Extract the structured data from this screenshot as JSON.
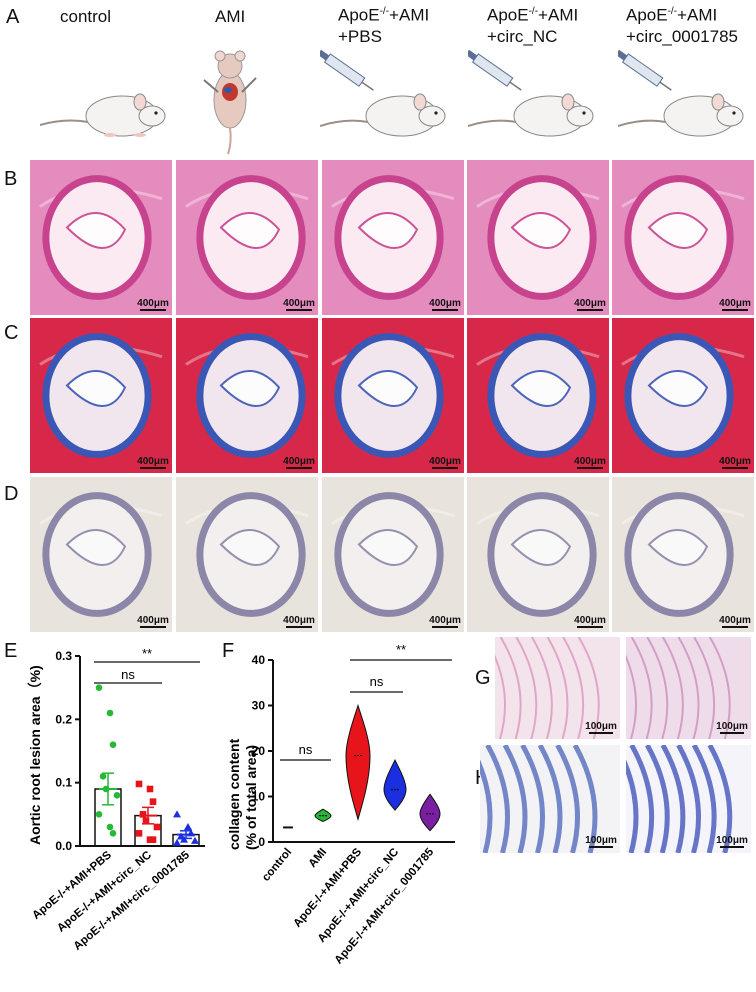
{
  "panels": {
    "A": "A",
    "B": "B",
    "C": "C",
    "D": "D",
    "E": "E",
    "F": "F",
    "G": "G",
    "H": "H"
  },
  "groups": [
    {
      "line1": "control",
      "line2": ""
    },
    {
      "line1": "AMI",
      "line2": ""
    },
    {
      "line1_pre": "ApoE",
      "line1_sup": "-/-",
      "line1_post": "+AMI",
      "line2": "+PBS"
    },
    {
      "line1_pre": "ApoE",
      "line1_sup": "-/-",
      "line1_post": "+AMI",
      "line2": "+circ_NC"
    },
    {
      "line1_pre": "ApoE",
      "line1_sup": "-/-",
      "line1_post": "+AMI",
      "line2": "+circ_0001785"
    }
  ],
  "scale_bar_main": "400μm",
  "scale_bar_small": "100μm",
  "colors": {
    "he_pink": "#e58cbf",
    "masson_red": "#d7284a",
    "masson_blue": "#3b57b5",
    "ihc_bg": "#e9e3de",
    "green": "#27b835",
    "red": "#e8141c",
    "blue": "#1c2fe0",
    "purple": "#7b1fa2"
  },
  "chart_data": [
    {
      "type": "bar",
      "panel": "E",
      "ylabel": "Aortic root lesion area（%)",
      "ylim": [
        0.0,
        0.3
      ],
      "yticks": [
        "0.0",
        "0.1",
        "0.2",
        "0.3"
      ],
      "categories": [
        "ApoE-/-+AMI+PBS",
        "ApoE-/-+AMI+circ_NC",
        "ApoE-/-+AMI+circ_0001785"
      ],
      "values": [
        0.09,
        0.048,
        0.018
      ],
      "sem": [
        0.025,
        0.013,
        0.006
      ],
      "points": [
        [
          0.25,
          0.21,
          0.16,
          0.11,
          0.09,
          0.08,
          0.05,
          0.03,
          0.02
        ],
        [
          0.098,
          0.09,
          0.07,
          0.05,
          0.04,
          0.03,
          0.02,
          0.01,
          0.01
        ],
        [
          0.05,
          0.03,
          0.02,
          0.015,
          0.01,
          0.008,
          0.005
        ]
      ],
      "annotations": [
        {
          "text": "**",
          "from": 0,
          "to": 2
        },
        {
          "text": "ns",
          "from": 0,
          "to": 1
        }
      ]
    },
    {
      "type": "violin",
      "panel": "F",
      "ylabel_line1": "collagen content",
      "ylabel_line2": "(% of total area)",
      "ylim": [
        0,
        40
      ],
      "yticks": [
        "0",
        "10",
        "20",
        "30",
        "40"
      ],
      "categories": [
        "control",
        "AMI",
        "ApoE-/-+AMI+PBS",
        "ApoE-/-+AMI+circ_NC",
        "ApoE-/-+AMI+circ_0001785"
      ],
      "medians": [
        3.2,
        5.8,
        19,
        11.5,
        6.2
      ],
      "ranges": [
        [
          3.0,
          3.4
        ],
        [
          4.5,
          7.2
        ],
        [
          5.0,
          30.0
        ],
        [
          7.0,
          18.0
        ],
        [
          2.5,
          10.5
        ]
      ],
      "annotations": [
        {
          "text": "ns",
          "from": 0,
          "to": 1
        },
        {
          "text": "ns",
          "from": 2,
          "to": 3
        },
        {
          "text": "**",
          "from": 2,
          "to": 4
        }
      ]
    }
  ]
}
